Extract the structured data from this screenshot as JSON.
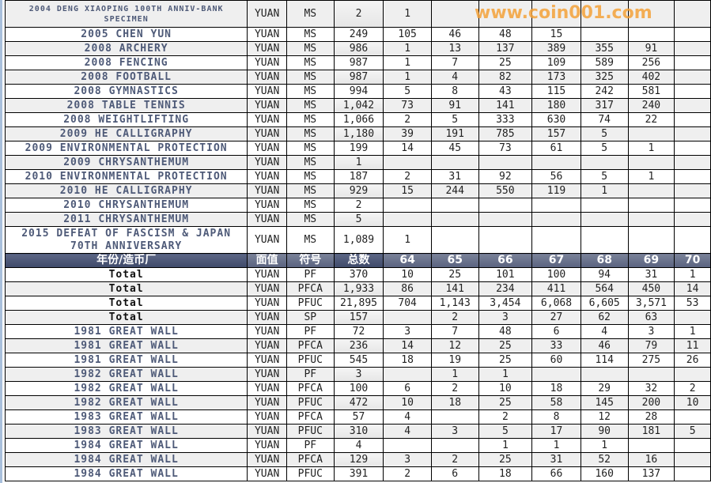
{
  "header": {
    "cols": [
      "年份/造币厂",
      "面值",
      "符号",
      "总数",
      "64",
      "65",
      "66",
      "67",
      "68",
      "69",
      "70"
    ]
  },
  "rows_top": [
    {
      "name": "2004 DENG XIAOPING 100TH ANNIV-BANK SPECIMEN",
      "unit": "YUAN",
      "sym": "MS",
      "total": "2",
      "v": [
        "1",
        "",
        "",
        "",
        "",
        "",
        ""
      ]
    },
    {
      "name": "2005 CHEN YUN",
      "unit": "YUAN",
      "sym": "MS",
      "total": "249",
      "v": [
        "105",
        "46",
        "48",
        "15",
        "",
        "",
        ""
      ]
    },
    {
      "name": "2008 ARCHERY",
      "unit": "YUAN",
      "sym": "MS",
      "total": "986",
      "v": [
        "1",
        "13",
        "137",
        "389",
        "355",
        "91",
        ""
      ]
    },
    {
      "name": "2008 FENCING",
      "unit": "YUAN",
      "sym": "MS",
      "total": "987",
      "v": [
        "1",
        "7",
        "25",
        "109",
        "589",
        "256",
        ""
      ]
    },
    {
      "name": "2008 FOOTBALL",
      "unit": "YUAN",
      "sym": "MS",
      "total": "987",
      "v": [
        "1",
        "4",
        "82",
        "173",
        "325",
        "402",
        ""
      ]
    },
    {
      "name": "2008 GYMNASTICS",
      "unit": "YUAN",
      "sym": "MS",
      "total": "994",
      "v": [
        "5",
        "8",
        "43",
        "115",
        "242",
        "581",
        ""
      ]
    },
    {
      "name": "2008 TABLE TENNIS",
      "unit": "YUAN",
      "sym": "MS",
      "total": "1,042",
      "v": [
        "73",
        "91",
        "141",
        "180",
        "317",
        "240",
        ""
      ]
    },
    {
      "name": "2008 WEIGHTLIFTING",
      "unit": "YUAN",
      "sym": "MS",
      "total": "1,066",
      "v": [
        "2",
        "5",
        "333",
        "630",
        "74",
        "22",
        ""
      ]
    },
    {
      "name": "2009 HE CALLIGRAPHY",
      "unit": "YUAN",
      "sym": "MS",
      "total": "1,180",
      "v": [
        "39",
        "191",
        "785",
        "157",
        "5",
        "",
        ""
      ]
    },
    {
      "name": "2009 ENVIRONMENTAL PROTECTION",
      "unit": "YUAN",
      "sym": "MS",
      "total": "199",
      "v": [
        "14",
        "45",
        "73",
        "61",
        "5",
        "1",
        ""
      ]
    },
    {
      "name": "2009 CHRYSANTHEMUM",
      "unit": "YUAN",
      "sym": "MS",
      "total": "1",
      "v": [
        "",
        "",
        "",
        "",
        "",
        "",
        ""
      ]
    },
    {
      "name": "2010 ENVIRONMENTAL PROTECTION",
      "unit": "YUAN",
      "sym": "MS",
      "total": "187",
      "v": [
        "2",
        "31",
        "92",
        "56",
        "5",
        "1",
        ""
      ]
    },
    {
      "name": "2010 HE CALLIGRAPHY",
      "unit": "YUAN",
      "sym": "MS",
      "total": "929",
      "v": [
        "15",
        "244",
        "550",
        "119",
        "1",
        "",
        ""
      ]
    },
    {
      "name": "2010 CHRYSANTHEMUM",
      "unit": "YUAN",
      "sym": "MS",
      "total": "2",
      "v": [
        "",
        "",
        "",
        "",
        "",
        "",
        ""
      ]
    },
    {
      "name": "2011 CHRYSANTHEMUM",
      "unit": "YUAN",
      "sym": "MS",
      "total": "5",
      "v": [
        "",
        "",
        "",
        "",
        "",
        "",
        ""
      ]
    },
    {
      "name": "2015 DEFEAT OF FASCISM & JAPAN 70TH ANNIVERSARY",
      "unit": "YUAN",
      "sym": "MS",
      "total": "1,089",
      "v": [
        "1",
        "",
        "",
        "",
        "",
        "",
        ""
      ]
    }
  ],
  "rows_bottom": [
    {
      "name": "Total",
      "unit": "YUAN",
      "sym": "PF",
      "total": "370",
      "v": [
        "10",
        "25",
        "101",
        "100",
        "94",
        "31",
        "1"
      ]
    },
    {
      "name": "Total",
      "unit": "YUAN",
      "sym": "PFCA",
      "total": "1,933",
      "v": [
        "86",
        "141",
        "234",
        "411",
        "564",
        "450",
        "14"
      ]
    },
    {
      "name": "Total",
      "unit": "YUAN",
      "sym": "PFUC",
      "total": "21,895",
      "v": [
        "704",
        "1,143",
        "3,454",
        "6,068",
        "6,605",
        "3,571",
        "53"
      ]
    },
    {
      "name": "Total",
      "unit": "YUAN",
      "sym": "SP",
      "total": "157",
      "v": [
        "",
        "2",
        "3",
        "27",
        "62",
        "63",
        ""
      ]
    },
    {
      "name": "1981 GREAT WALL",
      "unit": "YUAN",
      "sym": "PF",
      "total": "72",
      "v": [
        "3",
        "7",
        "48",
        "6",
        "4",
        "3",
        "1"
      ]
    },
    {
      "name": "1981 GREAT WALL",
      "unit": "YUAN",
      "sym": "PFCA",
      "total": "236",
      "v": [
        "14",
        "12",
        "25",
        "33",
        "46",
        "79",
        "11"
      ]
    },
    {
      "name": "1981 GREAT WALL",
      "unit": "YUAN",
      "sym": "PFUC",
      "total": "545",
      "v": [
        "18",
        "19",
        "25",
        "60",
        "114",
        "275",
        "26"
      ]
    },
    {
      "name": "1982 GREAT WALL",
      "unit": "YUAN",
      "sym": "PF",
      "total": "3",
      "v": [
        "",
        "1",
        "1",
        "",
        "",
        "",
        ""
      ]
    },
    {
      "name": "1982 GREAT WALL",
      "unit": "YUAN",
      "sym": "PFCA",
      "total": "100",
      "v": [
        "6",
        "2",
        "10",
        "18",
        "29",
        "32",
        "2"
      ]
    },
    {
      "name": "1982 GREAT WALL",
      "unit": "YUAN",
      "sym": "PFUC",
      "total": "472",
      "v": [
        "10",
        "18",
        "25",
        "58",
        "145",
        "200",
        "10"
      ]
    },
    {
      "name": "1983 GREAT WALL",
      "unit": "YUAN",
      "sym": "PFCA",
      "total": "57",
      "v": [
        "4",
        "",
        "2",
        "8",
        "12",
        "28",
        ""
      ]
    },
    {
      "name": "1983 GREAT WALL",
      "unit": "YUAN",
      "sym": "PFUC",
      "total": "310",
      "v": [
        "4",
        "3",
        "5",
        "17",
        "90",
        "181",
        "5"
      ]
    },
    {
      "name": "1984 GREAT WALL",
      "unit": "YUAN",
      "sym": "PF",
      "total": "4",
      "v": [
        "",
        "",
        "1",
        "1",
        "1",
        "",
        ""
      ]
    },
    {
      "name": "1984 GREAT WALL",
      "unit": "YUAN",
      "sym": "PFCA",
      "total": "129",
      "v": [
        "3",
        "2",
        "25",
        "31",
        "52",
        "16",
        ""
      ]
    },
    {
      "name": "1984 GREAT WALL",
      "unit": "YUAN",
      "sym": "PFUC",
      "total": "391",
      "v": [
        "2",
        "6",
        "18",
        "66",
        "160",
        "137",
        ""
      ]
    }
  ],
  "watermark": "www.coin001.com"
}
